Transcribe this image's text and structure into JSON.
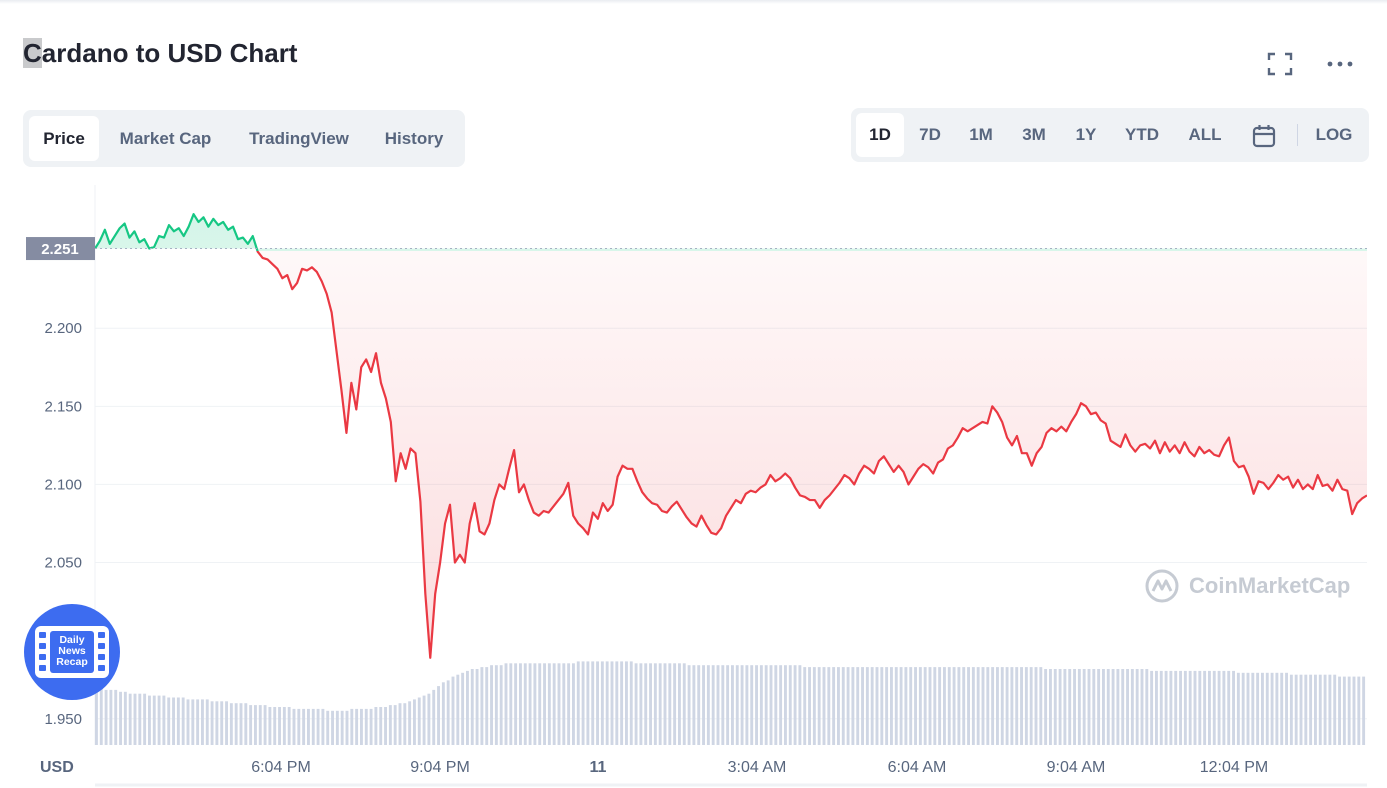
{
  "header": {
    "title_highlight": "C",
    "title_rest": "ardano to USD Chart"
  },
  "icons": {
    "fullscreen": "fullscreen-icon",
    "more": "more-horizontal-icon",
    "calendar": "calendar-icon"
  },
  "tabs": [
    {
      "label": "Price",
      "active": true
    },
    {
      "label": "Market Cap",
      "active": false
    },
    {
      "label": "TradingView",
      "active": false
    },
    {
      "label": "History",
      "active": false
    }
  ],
  "ranges": [
    {
      "label": "1D",
      "active": true
    },
    {
      "label": "7D",
      "active": false
    },
    {
      "label": "1M",
      "active": false
    },
    {
      "label": "3M",
      "active": false
    },
    {
      "label": "1Y",
      "active": false
    },
    {
      "label": "YTD",
      "active": false
    },
    {
      "label": "ALL",
      "active": false
    }
  ],
  "log_label": "LOG",
  "badge": {
    "line1": "Daily",
    "line2": "News",
    "line3": "Recap"
  },
  "watermark": "CoinMarketCap",
  "colors": {
    "up": "#16c784",
    "down": "#ea3943",
    "volume": "#cfd6e4",
    "badge": "#3d6cf0",
    "axis_text": "#58667e"
  },
  "chart_data": {
    "type": "line",
    "title": "Cardano to USD Chart",
    "ylabel": "USD",
    "ylim": [
      1.93,
      2.3
    ],
    "yticks": [
      "2.200",
      "2.150",
      "2.100",
      "2.050",
      "1.950"
    ],
    "reference_price": 2.251,
    "reference_label": "2.251",
    "x_ticks": [
      "6:04 PM",
      "9:04 PM",
      "11",
      "3:04 AM",
      "6:04 AM",
      "9:04 AM",
      "12:04 PM"
    ],
    "x_start": "3:34 PM",
    "x_end": "2:54 PM",
    "series": [
      {
        "type": "price",
        "values": [
          2.251,
          2.256,
          2.263,
          2.254,
          2.259,
          2.264,
          2.267,
          2.258,
          2.262,
          2.255,
          2.257,
          2.251,
          2.252,
          2.259,
          2.258,
          2.266,
          2.262,
          2.264,
          2.259,
          2.265,
          2.273,
          2.268,
          2.271,
          2.265,
          2.27,
          2.266,
          2.268,
          2.263,
          2.265,
          2.257,
          2.258,
          2.254,
          2.259,
          2.249,
          2.245,
          2.244,
          2.241,
          2.238,
          2.232,
          2.234,
          2.225,
          2.229,
          2.238,
          2.237,
          2.239,
          2.236,
          2.23,
          2.222,
          2.21,
          2.185,
          2.16,
          2.133,
          2.165,
          2.148,
          2.175,
          2.18,
          2.172,
          2.184,
          2.165,
          2.155,
          2.14,
          2.102,
          2.12,
          2.11,
          2.123,
          2.12,
          2.089,
          2.03,
          1.989,
          2.03,
          2.05,
          2.075,
          2.087,
          2.05,
          2.055,
          2.05,
          2.075,
          2.088,
          2.07,
          2.068,
          2.075,
          2.09,
          2.1,
          2.097,
          2.11,
          2.122,
          2.095,
          2.1,
          2.09,
          2.082,
          2.08,
          2.083,
          2.082,
          2.086,
          2.09,
          2.094,
          2.101,
          2.08,
          2.075,
          2.072,
          2.068,
          2.082,
          2.078,
          2.088,
          2.083,
          2.087,
          2.105,
          2.112,
          2.11,
          2.11,
          2.102,
          2.095,
          2.091,
          2.088,
          2.087,
          2.083,
          2.082,
          2.086,
          2.089,
          2.084,
          2.079,
          2.075,
          2.073,
          2.08,
          2.074,
          2.069,
          2.068,
          2.072,
          2.08,
          2.085,
          2.09,
          2.088,
          2.094,
          2.096,
          2.095,
          2.098,
          2.1,
          2.106,
          2.102,
          2.104,
          2.107,
          2.104,
          2.098,
          2.093,
          2.092,
          2.09,
          2.09,
          2.085,
          2.09,
          2.093,
          2.097,
          2.101,
          2.106,
          2.104,
          2.1,
          2.107,
          2.112,
          2.11,
          2.107,
          2.115,
          2.118,
          2.113,
          2.108,
          2.112,
          2.108,
          2.1,
          2.105,
          2.11,
          2.113,
          2.111,
          2.107,
          2.114,
          2.116,
          2.123,
          2.125,
          2.13,
          2.136,
          2.134,
          2.136,
          2.138,
          2.14,
          2.139,
          2.15,
          2.146,
          2.14,
          2.13,
          2.125,
          2.131,
          2.12,
          2.12,
          2.112,
          2.12,
          2.124,
          2.133,
          2.136,
          2.134,
          2.137,
          2.134,
          2.14,
          2.145,
          2.152,
          2.15,
          2.145,
          2.146,
          2.141,
          2.139,
          2.128,
          2.126,
          2.124,
          2.132,
          2.125,
          2.121,
          2.125,
          2.126,
          2.123,
          2.128,
          2.12,
          2.127,
          2.121,
          2.125,
          2.12,
          2.127,
          2.121,
          2.118,
          2.124,
          2.12,
          2.122,
          2.119,
          2.118,
          2.125,
          2.13,
          2.115,
          2.111,
          2.112,
          2.105,
          2.094,
          2.102,
          2.101,
          2.097,
          2.101,
          2.106,
          2.103,
          2.105,
          2.098,
          2.103,
          2.097,
          2.1,
          2.097,
          2.106,
          2.099,
          2.1,
          2.096,
          2.103,
          2.097,
          2.096,
          2.081,
          2.088,
          2.091,
          2.093
        ]
      },
      {
        "type": "volume",
        "values": [
          0.3,
          0.3,
          0.29,
          0.29,
          0.29,
          0.28,
          0.28,
          0.27,
          0.27,
          0.27,
          0.27,
          0.26,
          0.26,
          0.26,
          0.26,
          0.25,
          0.25,
          0.25,
          0.25,
          0.24,
          0.24,
          0.24,
          0.24,
          0.24,
          0.23,
          0.23,
          0.23,
          0.23,
          0.22,
          0.22,
          0.22,
          0.22,
          0.21,
          0.21,
          0.21,
          0.21,
          0.2,
          0.2,
          0.2,
          0.2,
          0.2,
          0.19,
          0.19,
          0.19,
          0.19,
          0.19,
          0.19,
          0.19,
          0.18,
          0.18,
          0.18,
          0.18,
          0.18,
          0.19,
          0.19,
          0.19,
          0.19,
          0.19,
          0.2,
          0.2,
          0.2,
          0.21,
          0.21,
          0.22,
          0.22,
          0.23,
          0.24,
          0.25,
          0.26,
          0.27,
          0.29,
          0.31,
          0.33,
          0.34,
          0.36,
          0.37,
          0.38,
          0.39,
          0.4,
          0.4,
          0.41,
          0.41,
          0.42,
          0.42,
          0.42,
          0.43,
          0.43,
          0.43,
          0.43,
          0.43,
          0.43,
          0.43,
          0.43,
          0.43,
          0.43,
          0.43,
          0.43,
          0.43,
          0.43,
          0.43,
          0.44,
          0.44,
          0.44,
          0.44,
          0.44,
          0.44,
          0.44,
          0.44,
          0.44,
          0.44,
          0.44,
          0.44,
          0.43,
          0.43,
          0.43,
          0.43,
          0.43,
          0.43,
          0.43,
          0.43,
          0.43,
          0.43,
          0.43,
          0.42,
          0.42,
          0.42,
          0.42,
          0.42,
          0.42,
          0.42,
          0.42,
          0.42,
          0.42,
          0.42,
          0.42,
          0.42,
          0.42,
          0.42,
          0.42,
          0.42,
          0.42,
          0.42,
          0.42,
          0.42,
          0.42,
          0.42,
          0.42,
          0.41,
          0.41,
          0.41,
          0.41,
          0.41,
          0.41,
          0.41,
          0.41,
          0.41,
          0.41,
          0.41,
          0.41,
          0.41,
          0.41,
          0.41,
          0.41,
          0.41,
          0.41,
          0.41,
          0.41,
          0.41,
          0.41,
          0.41,
          0.41,
          0.41,
          0.41,
          0.41,
          0.41,
          0.41,
          0.41,
          0.41,
          0.41,
          0.41,
          0.41,
          0.41,
          0.41,
          0.41,
          0.41,
          0.41,
          0.41,
          0.41,
          0.41,
          0.41,
          0.41,
          0.41,
          0.41,
          0.41,
          0.41,
          0.41,
          0.41,
          0.4,
          0.4,
          0.4,
          0.4,
          0.4,
          0.4,
          0.4,
          0.4,
          0.4,
          0.4,
          0.4,
          0.4,
          0.4,
          0.4,
          0.4,
          0.4,
          0.4,
          0.4,
          0.4,
          0.4,
          0.4,
          0.4,
          0.39,
          0.39,
          0.39,
          0.39,
          0.39,
          0.39,
          0.39,
          0.39,
          0.39,
          0.39,
          0.39,
          0.39,
          0.39,
          0.39,
          0.39,
          0.39,
          0.39,
          0.39,
          0.38,
          0.38,
          0.38,
          0.38,
          0.38,
          0.38,
          0.38,
          0.38,
          0.38,
          0.38,
          0.38,
          0.37,
          0.37,
          0.37,
          0.37,
          0.37,
          0.37,
          0.37,
          0.37,
          0.37,
          0.37,
          0.36,
          0.36,
          0.36,
          0.36,
          0.36,
          0.36
        ]
      }
    ]
  }
}
